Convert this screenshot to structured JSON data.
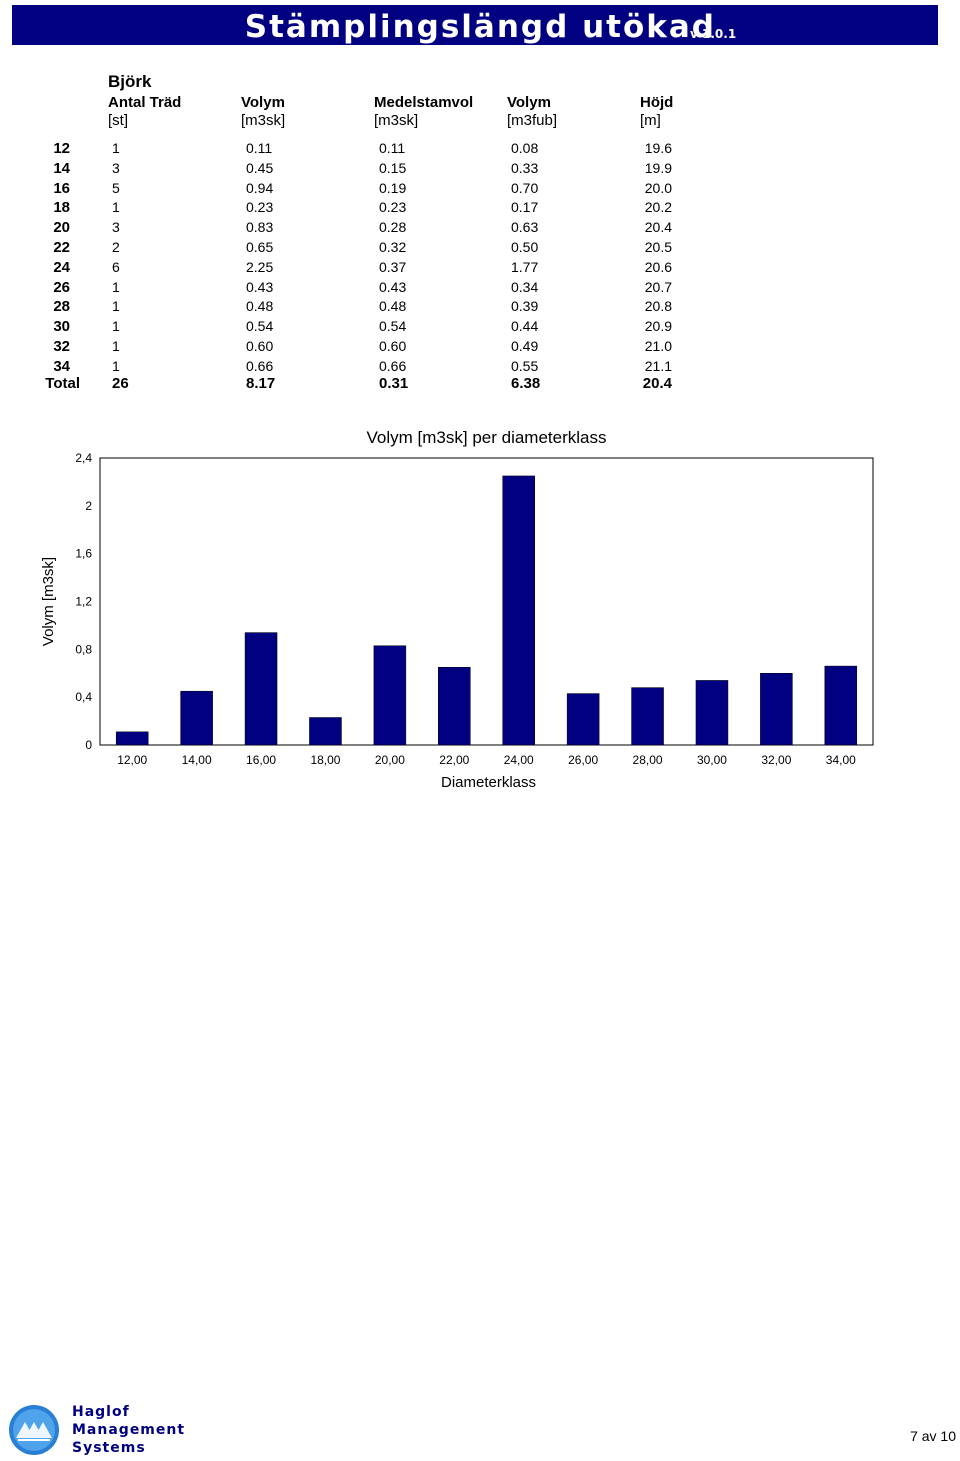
{
  "header": {
    "title": "Stämplingslängd utökad",
    "version": "v 1.0.1"
  },
  "table": {
    "species": "Björk",
    "columns": [
      {
        "name": "Antal Träd",
        "unit": "[st]"
      },
      {
        "name": "Volym",
        "unit": "[m3sk]"
      },
      {
        "name": "Medelstamvol",
        "unit": "[m3sk]"
      },
      {
        "name": "Volym",
        "unit": "[m3fub]"
      },
      {
        "name": "Höjd",
        "unit": "[m]"
      }
    ],
    "rows": [
      {
        "dia": "12",
        "antal": "1",
        "volym": "0.11",
        "medel": "0.11",
        "fub": "0.08",
        "hojd": "19.6"
      },
      {
        "dia": "14",
        "antal": "3",
        "volym": "0.45",
        "medel": "0.15",
        "fub": "0.33",
        "hojd": "19.9"
      },
      {
        "dia": "16",
        "antal": "5",
        "volym": "0.94",
        "medel": "0.19",
        "fub": "0.70",
        "hojd": "20.0"
      },
      {
        "dia": "18",
        "antal": "1",
        "volym": "0.23",
        "medel": "0.23",
        "fub": "0.17",
        "hojd": "20.2"
      },
      {
        "dia": "20",
        "antal": "3",
        "volym": "0.83",
        "medel": "0.28",
        "fub": "0.63",
        "hojd": "20.4"
      },
      {
        "dia": "22",
        "antal": "2",
        "volym": "0.65",
        "medel": "0.32",
        "fub": "0.50",
        "hojd": "20.5"
      },
      {
        "dia": "24",
        "antal": "6",
        "volym": "2.25",
        "medel": "0.37",
        "fub": "1.77",
        "hojd": "20.6"
      },
      {
        "dia": "26",
        "antal": "1",
        "volym": "0.43",
        "medel": "0.43",
        "fub": "0.34",
        "hojd": "20.7"
      },
      {
        "dia": "28",
        "antal": "1",
        "volym": "0.48",
        "medel": "0.48",
        "fub": "0.39",
        "hojd": "20.8"
      },
      {
        "dia": "30",
        "antal": "1",
        "volym": "0.54",
        "medel": "0.54",
        "fub": "0.44",
        "hojd": "20.9"
      },
      {
        "dia": "32",
        "antal": "1",
        "volym": "0.60",
        "medel": "0.60",
        "fub": "0.49",
        "hojd": "21.0"
      },
      {
        "dia": "34",
        "antal": "1",
        "volym": "0.66",
        "medel": "0.66",
        "fub": "0.55",
        "hojd": "21.1"
      }
    ],
    "total": {
      "dia": "Total",
      "antal": "26",
      "volym": "8.17",
      "medel": "0.31",
      "fub": "6.38",
      "hojd": "20.4"
    }
  },
  "chart_data": {
    "type": "bar",
    "title": "Volym [m3sk] per diameterklass",
    "xlabel": "Diameterklass",
    "ylabel": "Volym [m3sk]",
    "categories": [
      "12,00",
      "14,00",
      "16,00",
      "18,00",
      "20,00",
      "22,00",
      "24,00",
      "26,00",
      "28,00",
      "30,00",
      "32,00",
      "34,00"
    ],
    "values": [
      0.11,
      0.45,
      0.94,
      0.23,
      0.83,
      0.65,
      2.25,
      0.43,
      0.48,
      0.54,
      0.6,
      0.66
    ],
    "yticks": [
      "0",
      "0,4",
      "0,8",
      "1,2",
      "1,6",
      "2",
      "2,4"
    ],
    "ylim": [
      0,
      2.4
    ],
    "bar_color": "#000080",
    "grid": false,
    "legend": "none"
  },
  "footer": {
    "brand_lines": [
      "Haglof",
      "Management",
      "Systems"
    ],
    "page": "7 av 10",
    "logo_icon": "haglof-logo-icon",
    "brand_color": "#000080"
  }
}
